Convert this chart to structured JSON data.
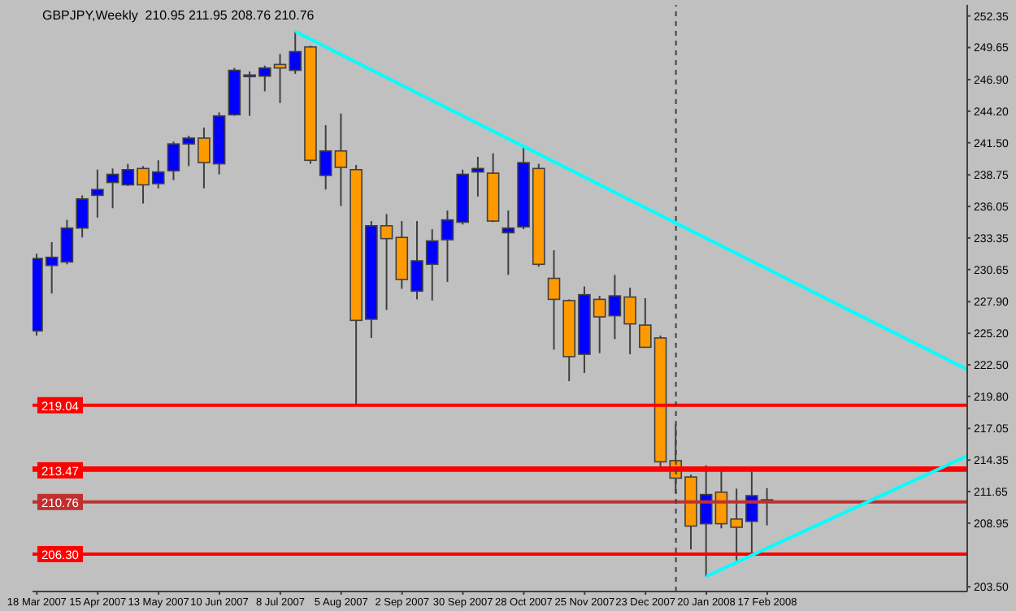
{
  "chart_data": {
    "type": "candlestick",
    "title": "GBPJPY,Weekly  210.95 211.95 208.76 210.76",
    "x": [
      "2007-03-18",
      "2007-03-25",
      "2007-04-01",
      "2007-04-08",
      "2007-04-15",
      "2007-04-22",
      "2007-04-29",
      "2007-05-06",
      "2007-05-13",
      "2007-05-20",
      "2007-05-27",
      "2007-06-03",
      "2007-06-10",
      "2007-06-17",
      "2007-06-24",
      "2007-07-01",
      "2007-07-08",
      "2007-07-15",
      "2007-07-22",
      "2007-07-29",
      "2007-08-05",
      "2007-08-12",
      "2007-08-19",
      "2007-08-26",
      "2007-09-02",
      "2007-09-09",
      "2007-09-16",
      "2007-09-23",
      "2007-09-30",
      "2007-10-07",
      "2007-10-14",
      "2007-10-21",
      "2007-10-28",
      "2007-11-04",
      "2007-11-11",
      "2007-11-18",
      "2007-11-25",
      "2007-12-02",
      "2007-12-09",
      "2007-12-16",
      "2007-12-23",
      "2007-12-30",
      "2008-01-06",
      "2008-01-13",
      "2008-01-20",
      "2008-01-27",
      "2008-02-03",
      "2008-02-10",
      "2008-02-17"
    ],
    "ohlc": [
      [
        225.4,
        232.0,
        225.0,
        231.6
      ],
      [
        231.0,
        233.0,
        228.6,
        231.7
      ],
      [
        231.3,
        234.9,
        231.1,
        234.2
      ],
      [
        234.2,
        237.0,
        233.4,
        236.7
      ],
      [
        237.0,
        239.2,
        235.1,
        237.5
      ],
      [
        238.1,
        239.3,
        235.9,
        238.8
      ],
      [
        237.9,
        239.7,
        237.8,
        239.2
      ],
      [
        239.3,
        239.5,
        236.3,
        237.9
      ],
      [
        238.0,
        240.0,
        237.6,
        239.0
      ],
      [
        239.1,
        241.6,
        238.3,
        241.4
      ],
      [
        241.4,
        242.1,
        239.5,
        241.9
      ],
      [
        241.9,
        242.8,
        237.6,
        239.8
      ],
      [
        239.7,
        244.1,
        238.8,
        243.8
      ],
      [
        243.9,
        247.9,
        243.8,
        247.7
      ],
      [
        247.2,
        247.6,
        243.8,
        247.3
      ],
      [
        247.2,
        248.1,
        245.9,
        247.9
      ],
      [
        248.2,
        249.1,
        244.9,
        247.9
      ],
      [
        247.7,
        251.0,
        247.4,
        249.3
      ],
      [
        249.7,
        249.8,
        239.7,
        240.0
      ],
      [
        238.7,
        243.0,
        237.5,
        240.8
      ],
      [
        240.8,
        244.0,
        236.1,
        239.4
      ],
      [
        239.2,
        239.6,
        219.0,
        226.3
      ],
      [
        226.4,
        234.8,
        224.8,
        234.4
      ],
      [
        234.4,
        235.4,
        227.2,
        233.3
      ],
      [
        233.4,
        234.8,
        229.0,
        229.8
      ],
      [
        228.8,
        234.8,
        228.1,
        231.4
      ],
      [
        231.1,
        234.1,
        228.0,
        233.1
      ],
      [
        233.2,
        235.7,
        229.6,
        234.9
      ],
      [
        234.7,
        239.2,
        234.5,
        238.8
      ],
      [
        239.0,
        240.3,
        236.9,
        239.3
      ],
      [
        238.9,
        240.6,
        234.7,
        234.8
      ],
      [
        233.8,
        235.7,
        230.2,
        234.2
      ],
      [
        234.3,
        241.3,
        234.1,
        239.8
      ],
      [
        239.3,
        239.7,
        230.9,
        231.1
      ],
      [
        229.9,
        232.3,
        223.8,
        228.1
      ],
      [
        228.0,
        228.1,
        221.1,
        223.2
      ],
      [
        223.4,
        229.2,
        221.8,
        228.5
      ],
      [
        228.1,
        228.4,
        223.5,
        226.6
      ],
      [
        226.7,
        230.2,
        224.7,
        228.4
      ],
      [
        228.3,
        229.1,
        223.4,
        226.0
      ],
      [
        225.9,
        228.2,
        224.0,
        224.0
      ],
      [
        224.8,
        225.0,
        213.7,
        214.2
      ],
      [
        214.3,
        217.4,
        211.5,
        212.8
      ],
      [
        212.9,
        213.1,
        206.7,
        208.7
      ],
      [
        208.9,
        213.9,
        204.4,
        211.4
      ],
      [
        211.6,
        213.6,
        208.5,
        208.9
      ],
      [
        209.3,
        211.9,
        205.75,
        208.6
      ],
      [
        209.1,
        213.7,
        206.2,
        211.3
      ],
      [
        210.95,
        211.95,
        208.76,
        210.76
      ]
    ],
    "colors": [
      "#0000ff",
      "#0000ff",
      "#0000ff",
      "#0000ff",
      "#0000ff",
      "#0000ff",
      "#0000ff",
      "#ff9900",
      "#0000ff",
      "#0000ff",
      "#0000ff",
      "#ff9900",
      "#0000ff",
      "#0000ff",
      "#0000ff",
      "#0000ff",
      "#ff9900",
      "#0000ff",
      "#ff9900",
      "#0000ff",
      "#ff9900",
      "#ff9900",
      "#0000ff",
      "#ff9900",
      "#ff9900",
      "#0000ff",
      "#0000ff",
      "#0000ff",
      "#0000ff",
      "#0000ff",
      "#ff9900",
      "#0000ff",
      "#0000ff",
      "#ff9900",
      "#ff9900",
      "#ff9900",
      "#0000ff",
      "#ff9900",
      "#0000ff",
      "#ff9900",
      "#ff9900",
      "#ff9900",
      "#ff9900",
      "#ff9900",
      "#0000ff",
      "#ff9900",
      "#ff9900",
      "#0000ff",
      "#ff9900"
    ],
    "series": [
      {
        "type": "line",
        "color": "#00ffff",
        "x": [
          "2007-07-15",
          "2008-05-19"
        ],
        "values": [
          251.0,
          222.1
        ]
      },
      {
        "type": "line",
        "color": "#00ffff",
        "x": [
          "2008-01-20",
          "2008-05-19"
        ],
        "values": [
          204.4,
          214.7
        ]
      }
    ],
    "ref_lines": [
      {
        "axis": "y",
        "value": 219.04,
        "label": "219.04",
        "color": "#ff0000"
      },
      {
        "axis": "y",
        "value": 213.7,
        "label": null,
        "color": "#ff0000"
      },
      {
        "axis": "y",
        "value": 213.47,
        "label": "213.47",
        "color": "#ff0000"
      },
      {
        "axis": "y",
        "value": 210.76,
        "label": "210.76",
        "color": "#c03030"
      },
      {
        "axis": "y",
        "value": 206.3,
        "label": "206.30",
        "color": "#ff0000"
      },
      {
        "axis": "x",
        "value": "2008-01-06",
        "label": null,
        "color": "#404040",
        "line_style": "dashed"
      }
    ],
    "xlim": [
      "2007-03-16",
      "2008-05-19"
    ],
    "xticks": [
      {
        "value": "2007-03-18",
        "label": "18 Mar 2007"
      },
      {
        "value": "2007-04-15",
        "label": "15 Apr 2007"
      },
      {
        "value": "2007-05-13",
        "label": "13 May 2007"
      },
      {
        "value": "2007-06-10",
        "label": "10 Jun 2007"
      },
      {
        "value": "2007-07-08",
        "label": "8 Jul 2007"
      },
      {
        "value": "2007-08-05",
        "label": "5 Aug 2007"
      },
      {
        "value": "2007-09-02",
        "label": "2 Sep 2007"
      },
      {
        "value": "2007-09-30",
        "label": "30 Sep 2007"
      },
      {
        "value": "2007-10-28",
        "label": "28 Oct 2007"
      },
      {
        "value": "2007-11-25",
        "label": "25 Nov 2007"
      },
      {
        "value": "2007-12-23",
        "label": "23 Dec 2007"
      },
      {
        "value": "2008-01-20",
        "label": "20 Jan 2008"
      },
      {
        "value": "2008-02-17",
        "label": "17 Feb 2008"
      }
    ],
    "ylim": [
      203.1,
      253.3
    ],
    "yticks": [
      {
        "value": 252.35,
        "label": "252.35"
      },
      {
        "value": 249.65,
        "label": "249.65"
      },
      {
        "value": 246.9,
        "label": "246.90"
      },
      {
        "value": 244.2,
        "label": "244.20"
      },
      {
        "value": 241.5,
        "label": "241.50"
      },
      {
        "value": 238.75,
        "label": "238.75"
      },
      {
        "value": 236.05,
        "label": "236.05"
      },
      {
        "value": 233.35,
        "label": "233.35"
      },
      {
        "value": 230.65,
        "label": "230.65"
      },
      {
        "value": 227.9,
        "label": "227.90"
      },
      {
        "value": 225.2,
        "label": "225.20"
      },
      {
        "value": 222.5,
        "label": "222.50"
      },
      {
        "value": 219.8,
        "label": "219.80"
      },
      {
        "value": 217.05,
        "label": "217.05"
      },
      {
        "value": 214.35,
        "label": "214.35"
      },
      {
        "value": 211.65,
        "label": "211.65"
      },
      {
        "value": 208.95,
        "label": "208.95"
      },
      {
        "value": 203.5,
        "label": "203.50"
      }
    ]
  }
}
